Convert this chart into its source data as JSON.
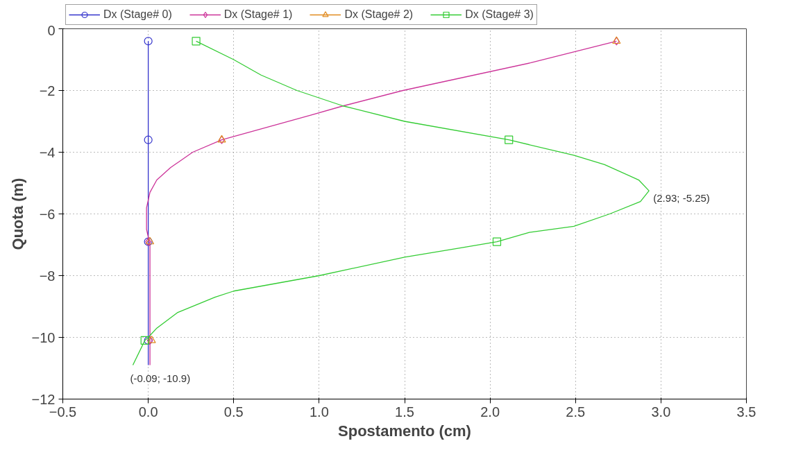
{
  "chart_data": {
    "type": "line",
    "xlabel": "Spostamento (cm)",
    "ylabel": "Quota (m)",
    "xlim": [
      -0.5,
      3.5
    ],
    "ylim": [
      -12,
      0
    ],
    "xticks": [
      -0.5,
      {
        "value": 0,
        "label": "0.0"
      },
      0.5,
      {
        "value": 1,
        "label": "1.0"
      },
      1.5,
      {
        "value": 2,
        "label": "2.0"
      },
      2.5,
      {
        "value": 3,
        "label": "3.0"
      },
      3.5
    ],
    "yticks": [
      -12,
      -10,
      -8,
      -6,
      -4,
      -2,
      0
    ],
    "grid": true,
    "legend": "top",
    "line_style": "solid",
    "series": [
      {
        "name": "Dx (Stage# 0)",
        "marker": "none",
        "color": "#3333cc",
        "x": [
          0,
          0
        ],
        "values": [
          -0.4,
          -10.9
        ]
      },
      {
        "type": "scatter",
        "marker": "circle",
        "color": "#3333cc",
        "x": [
          0,
          0,
          0,
          0
        ],
        "values": [
          -0.4,
          -3.6,
          -6.9,
          -10.1
        ]
      },
      {
        "name": "Dx (Stage# 1)",
        "marker": "none",
        "color": "#cc3399",
        "x": [
          2.74,
          2.24,
          1.49,
          1.14,
          0.95,
          0.43,
          0.26,
          0.13,
          0.05,
          0.01,
          -0.01,
          -0.01,
          0.01,
          0.01
        ],
        "values": [
          -0.4,
          -1.1,
          -2.0,
          -2.5,
          -2.8,
          -3.6,
          -4.0,
          -4.5,
          -4.9,
          -5.3,
          -5.8,
          -6.5,
          -7.0,
          -10.9
        ]
      },
      {
        "type": "scatter",
        "marker": "diamond",
        "color": "#cc3399",
        "x": [
          2.74,
          0.43,
          0,
          0.01
        ],
        "values": [
          -0.4,
          -3.6,
          -6.9,
          -10.1
        ]
      },
      {
        "name": "Dx (Stage# 2)",
        "type": "scatter",
        "marker": "triangle",
        "color": "#e08a1e",
        "x": [
          2.74,
          0.43,
          0.01,
          0.02
        ],
        "values": [
          -0.4,
          -3.6,
          -6.9,
          -10.1
        ]
      },
      {
        "name": "Dx (Stage# 3)",
        "marker": "none",
        "color": "#33cc33",
        "x": [
          0.28,
          0.5,
          0.66,
          0.87,
          1.14,
          1.5,
          2.11,
          2.49,
          2.67,
          2.87,
          2.93,
          2.88,
          2.7,
          2.49,
          2.23,
          2.04,
          1.83,
          1.5,
          1.0,
          0.5,
          0.39,
          0.17,
          0.05,
          0,
          -0.02,
          -0.09
        ],
        "values": [
          -0.4,
          -1.0,
          -1.5,
          -2.0,
          -2.5,
          -3.0,
          -3.6,
          -4.1,
          -4.4,
          -4.9,
          -5.25,
          -5.6,
          -6.0,
          -6.4,
          -6.6,
          -6.9,
          -7.1,
          -7.4,
          -8.0,
          -8.5,
          -8.7,
          -9.2,
          -9.7,
          -10.0,
          -10.1,
          -10.9
        ]
      },
      {
        "type": "scatter",
        "marker": "square",
        "color": "#33cc33",
        "x": [
          0.28,
          2.11,
          2.04,
          -0.02
        ],
        "values": [
          -0.4,
          -3.6,
          -6.9,
          -10.1
        ]
      }
    ],
    "annotations": [
      {
        "text": "(2.93; -5.25)",
        "x": 2.93,
        "y": -5.25
      },
      {
        "text": "(-0.09; -10.9)",
        "x": -0.09,
        "y": -10.9
      }
    ]
  }
}
